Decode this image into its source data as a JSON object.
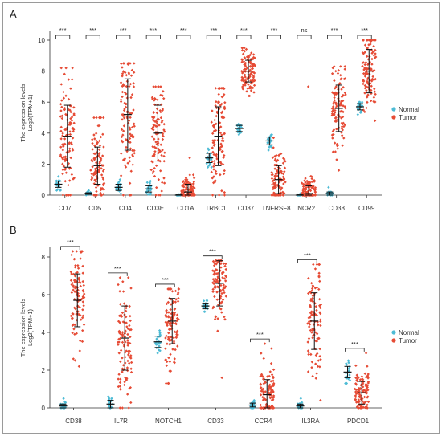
{
  "panels": [
    {
      "label": "A",
      "chart_data": {
        "type": "scatter",
        "subtype": "jitter-strip with mean and SD error bars",
        "ylabel_line1": "The expression levels",
        "ylabel_line2": "Log2(TPM+1)",
        "ylim": [
          0,
          10
        ],
        "yticks": [
          "0",
          "2",
          "4",
          "6",
          "8",
          "10"
        ],
        "categories": [
          "CD7",
          "CD5",
          "CD4",
          "CD3E",
          "CD1A",
          "TRBC1",
          "CD37",
          "TNFRSF8",
          "NCR2",
          "CD38",
          "CD99"
        ],
        "significance": [
          "***",
          "***",
          "***",
          "***",
          "***",
          "***",
          "***",
          "***",
          "ns",
          "***",
          "***"
        ],
        "legend": [
          "Normal",
          "Tumor"
        ],
        "legend_position": "right",
        "series": [
          {
            "name": "Normal",
            "color": "#4dbbd5",
            "mean": [
              0.7,
              0.1,
              0.5,
              0.4,
              0.0,
              2.4,
              4.3,
              3.5,
              0.0,
              0.1,
              5.7
            ],
            "sd": [
              0.2,
              0.05,
              0.2,
              0.2,
              0.02,
              0.3,
              0.2,
              0.25,
              0.02,
              0.1,
              0.2
            ],
            "min": [
              0.3,
              0.0,
              0.1,
              0.05,
              0.0,
              1.8,
              3.9,
              2.9,
              0.0,
              0.0,
              5.2
            ],
            "max": [
              1.2,
              0.3,
              1.0,
              0.9,
              0.1,
              3.0,
              4.6,
              3.9,
              0.1,
              0.5,
              6.0
            ]
          },
          {
            "name": "Tumor",
            "color": "#e64b35",
            "mean": [
              3.8,
              1.9,
              5.2,
              4.0,
              0.2,
              3.8,
              8.0,
              1.0,
              0.1,
              5.6,
              8.0
            ],
            "sd": [
              2.0,
              1.2,
              2.3,
              1.8,
              0.5,
              1.9,
              0.7,
              0.9,
              0.5,
              1.5,
              1.4
            ],
            "min": [
              0.0,
              0.0,
              0.0,
              0.0,
              0.0,
              0.0,
              6.4,
              0.0,
              0.0,
              1.6,
              4.8
            ],
            "max": [
              8.2,
              5.0,
              8.5,
              7.0,
              2.4,
              6.9,
              9.5,
              3.7,
              7.0,
              8.3,
              10.0
            ]
          }
        ]
      }
    },
    {
      "label": "B",
      "chart_data": {
        "type": "scatter",
        "subtype": "jitter-strip with mean and SD error bars",
        "ylabel_line1": "The expression levels",
        "ylabel_line2": "Log2(TPM+1)",
        "ylim": [
          0,
          8
        ],
        "yticks": [
          "0",
          "2",
          "4",
          "6",
          "8"
        ],
        "categories": [
          "CD38",
          "IL7R",
          "NOTCH1",
          "CD33",
          "CCR4",
          "IL3RA",
          "PDCD1"
        ],
        "significance": [
          "***",
          "***",
          "***",
          "***",
          "***",
          "***",
          "***"
        ],
        "legend": [
          "Normal",
          "Tumor"
        ],
        "legend_position": "right",
        "series": [
          {
            "name": "Normal",
            "color": "#4dbbd5",
            "mean": [
              0.1,
              0.2,
              3.5,
              5.4,
              0.15,
              0.1,
              1.9
            ],
            "sd": [
              0.1,
              0.2,
              0.3,
              0.15,
              0.1,
              0.1,
              0.3
            ],
            "min": [
              0.0,
              0.0,
              2.9,
              5.1,
              0.0,
              0.0,
              1.3
            ],
            "max": [
              0.5,
              0.6,
              4.1,
              5.7,
              0.4,
              0.5,
              2.5
            ]
          },
          {
            "name": "Tumor",
            "color": "#e64b35",
            "mean": [
              5.7,
              3.7,
              4.6,
              6.6,
              0.7,
              4.6,
              0.8
            ],
            "sd": [
              1.4,
              1.7,
              1.2,
              1.2,
              0.8,
              1.5,
              0.6
            ],
            "min": [
              2.2,
              0.0,
              1.3,
              1.6,
              0.0,
              0.4,
              0.0
            ],
            "max": [
              8.3,
              6.9,
              6.3,
              7.8,
              3.4,
              7.6,
              2.9
            ]
          }
        ]
      }
    }
  ]
}
